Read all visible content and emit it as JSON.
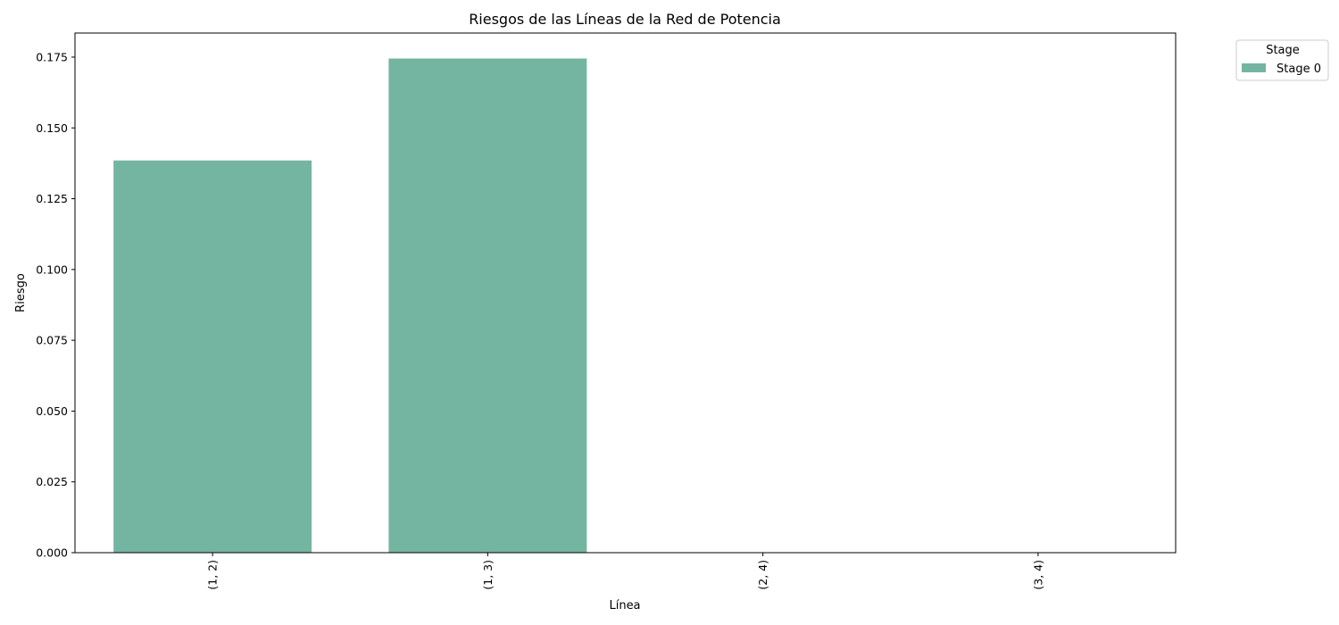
{
  "chart_data": {
    "type": "bar",
    "title": "Riesgos de las Líneas de la Red de Potencia",
    "xlabel": "Línea",
    "ylabel": "Riesgo",
    "categories": [
      "(1, 2)",
      "(1, 3)",
      "(2, 4)",
      "(3, 4)"
    ],
    "series": [
      {
        "name": "Stage 0",
        "values": [
          0.1385,
          0.1745,
          0.0,
          0.0
        ],
        "color": "#74b5a1"
      }
    ],
    "ylim": [
      0,
      0.1835
    ],
    "yticks": [
      0.0,
      0.025,
      0.05,
      0.075,
      0.1,
      0.125,
      0.15,
      0.175
    ],
    "ytick_labels": [
      "0.000",
      "0.025",
      "0.050",
      "0.075",
      "0.100",
      "0.125",
      "0.150",
      "0.175"
    ],
    "legend": {
      "title": "Stage",
      "placement": "outside-top-right"
    },
    "grid": false
  }
}
